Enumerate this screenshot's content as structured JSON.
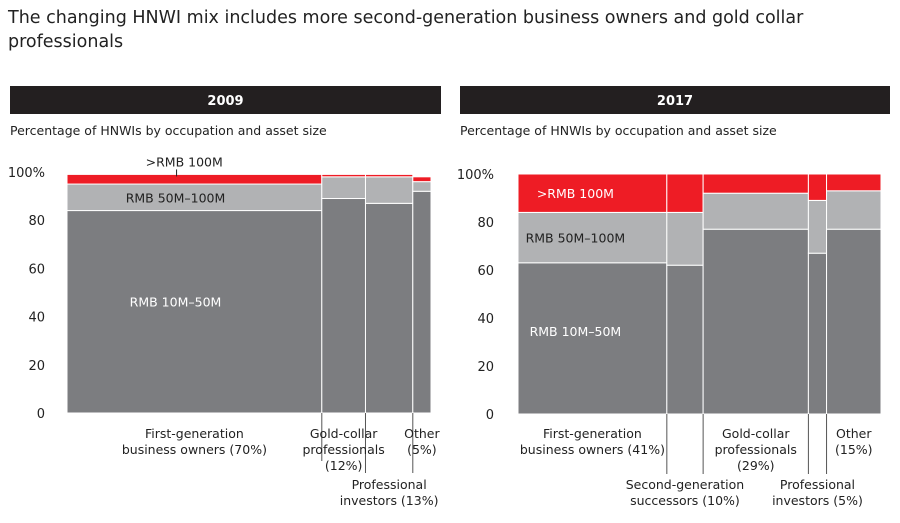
{
  "title": "The changing HNWI mix includes more second-generation business owners and gold collar professionals",
  "colors": {
    "header_bg": "#231f20",
    "segment_low": "#7c7d80",
    "segment_mid": "#b1b2b4",
    "segment_high": "#ee1c25"
  },
  "chart_data": [
    {
      "type": "mekko",
      "title": "2009",
      "subtitle": "Percentage of HNWIs by occupation and asset size",
      "yticks": [
        "100%",
        "80",
        "60",
        "40",
        "20",
        "0"
      ],
      "ylim": [
        0,
        100
      ],
      "segment_labels": [
        {
          "text": "RMB 10M–50M",
          "segment": 0
        },
        {
          "text": "RMB 50M–100M",
          "segment": 1
        },
        {
          "text": ">RMB 100M",
          "segment": 2
        }
      ],
      "categories": [
        {
          "label": [
            "First-generation",
            "business owners (70%)"
          ],
          "width": 70,
          "values": [
            84,
            11,
            4
          ]
        },
        {
          "label": [
            "Gold-collar",
            "professionals",
            "(12%)"
          ],
          "width": 12,
          "values": [
            89,
            9,
            1
          ]
        },
        {
          "label": [
            "Professional",
            "investors (13%)"
          ],
          "width": 13,
          "values": [
            87,
            11,
            1
          ]
        },
        {
          "label": [
            "Other",
            "(5%)"
          ],
          "width": 5,
          "values": [
            92,
            4,
            2
          ]
        }
      ]
    },
    {
      "type": "mekko",
      "title": "2017",
      "subtitle": "Percentage of HNWIs by occupation and asset size",
      "yticks": [
        "100%",
        "80",
        "60",
        "40",
        "20",
        "0"
      ],
      "ylim": [
        0,
        100
      ],
      "segment_labels": [
        {
          "text": "RMB 10M–50M",
          "segment": 0
        },
        {
          "text": "RMB 50M–100M",
          "segment": 1
        },
        {
          "text": ">RMB 100M",
          "segment": 2
        }
      ],
      "categories": [
        {
          "label": [
            "First-generation",
            "business owners (41%)"
          ],
          "width": 41,
          "values": [
            63,
            21,
            16
          ]
        },
        {
          "label": [
            "Second-generation",
            "successors (10%)"
          ],
          "width": 10,
          "values": [
            62,
            22,
            16
          ]
        },
        {
          "label": [
            "Gold-collar",
            "professionals",
            "(29%)"
          ],
          "width": 29,
          "values": [
            77,
            15,
            8
          ]
        },
        {
          "label": [
            "Professional",
            "investors (5%)"
          ],
          "width": 5,
          "values": [
            67,
            22,
            11
          ]
        },
        {
          "label": [
            "Other",
            "(15%)"
          ],
          "width": 15,
          "values": [
            77,
            16,
            7
          ]
        }
      ]
    }
  ]
}
